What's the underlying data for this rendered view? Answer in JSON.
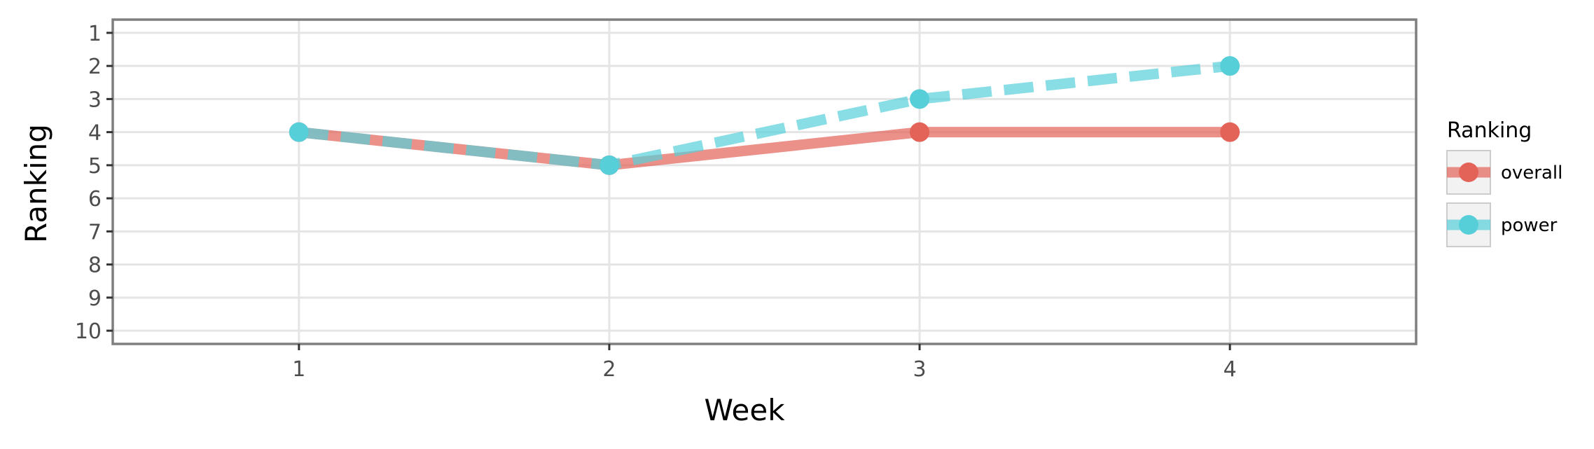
{
  "chart_data": {
    "type": "line",
    "title": "",
    "xlabel": "Week",
    "ylabel": "Ranking",
    "x": [
      1,
      2,
      3,
      4
    ],
    "xlim": [
      0.4,
      4.6
    ],
    "ylim": [
      10.4,
      0.6
    ],
    "y_reversed": true,
    "x_ticks": [
      "1",
      "2",
      "3",
      "4"
    ],
    "y_ticks": [
      "1",
      "2",
      "3",
      "4",
      "5",
      "6",
      "7",
      "8",
      "9",
      "10"
    ],
    "grid": true,
    "legend_position": "right",
    "legend_title": "Ranking",
    "series": [
      {
        "name": "overall",
        "values": [
          4,
          5,
          4,
          4
        ],
        "color": "#e36358",
        "line_style": "solid"
      },
      {
        "name": "power",
        "values": [
          4,
          5,
          3,
          2
        ],
        "color": "#57cfd9",
        "line_style": "dashed"
      }
    ]
  }
}
